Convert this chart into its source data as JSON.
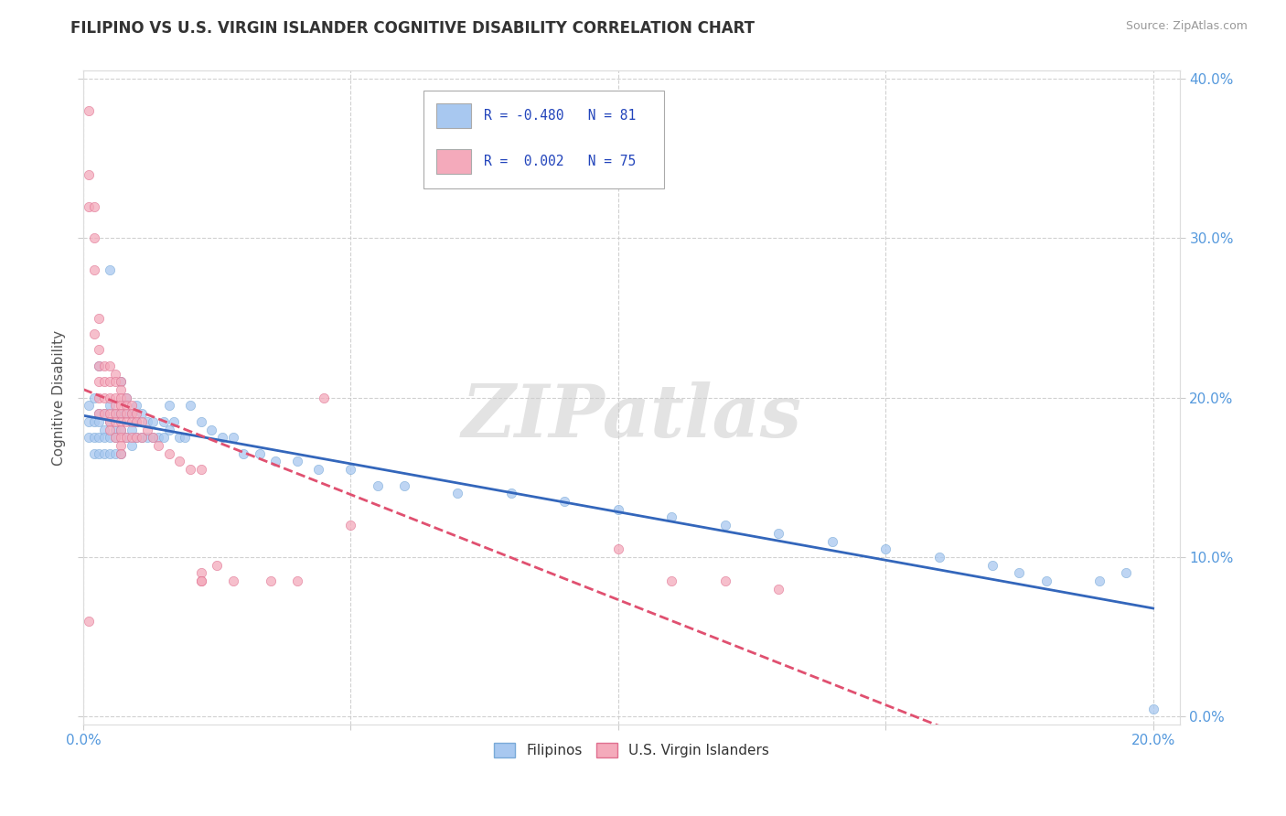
{
  "title": "FILIPINO VS U.S. VIRGIN ISLANDER COGNITIVE DISABILITY CORRELATION CHART",
  "source": "Source: ZipAtlas.com",
  "ylabel": "Cognitive Disability",
  "watermark": "ZIPatlas",
  "series": [
    {
      "name": "Filipinos",
      "color": "#A8C8F0",
      "edge_color": "#7AAAD8",
      "R": -0.48,
      "N": 81,
      "trend_color": "#3366BB",
      "trend_dash": "solid",
      "x": [
        0.001,
        0.001,
        0.001,
        0.002,
        0.002,
        0.002,
        0.002,
        0.003,
        0.003,
        0.003,
        0.003,
        0.003,
        0.004,
        0.004,
        0.004,
        0.004,
        0.005,
        0.005,
        0.005,
        0.005,
        0.005,
        0.006,
        0.006,
        0.006,
        0.006,
        0.007,
        0.007,
        0.007,
        0.007,
        0.008,
        0.008,
        0.008,
        0.009,
        0.009,
        0.009,
        0.01,
        0.01,
        0.01,
        0.011,
        0.011,
        0.012,
        0.012,
        0.013,
        0.013,
        0.014,
        0.015,
        0.015,
        0.016,
        0.016,
        0.017,
        0.018,
        0.019,
        0.02,
        0.022,
        0.024,
        0.026,
        0.028,
        0.03,
        0.033,
        0.036,
        0.04,
        0.044,
        0.05,
        0.055,
        0.06,
        0.07,
        0.08,
        0.09,
        0.1,
        0.11,
        0.12,
        0.13,
        0.14,
        0.15,
        0.16,
        0.17,
        0.175,
        0.18,
        0.19,
        0.195,
        0.2
      ],
      "y": [
        0.195,
        0.185,
        0.175,
        0.2,
        0.185,
        0.175,
        0.165,
        0.19,
        0.185,
        0.175,
        0.165,
        0.22,
        0.19,
        0.18,
        0.175,
        0.165,
        0.195,
        0.185,
        0.175,
        0.165,
        0.28,
        0.19,
        0.18,
        0.175,
        0.165,
        0.21,
        0.19,
        0.18,
        0.165,
        0.2,
        0.19,
        0.175,
        0.19,
        0.18,
        0.17,
        0.195,
        0.185,
        0.175,
        0.19,
        0.175,
        0.185,
        0.175,
        0.185,
        0.175,
        0.175,
        0.185,
        0.175,
        0.195,
        0.18,
        0.185,
        0.175,
        0.175,
        0.195,
        0.185,
        0.18,
        0.175,
        0.175,
        0.165,
        0.165,
        0.16,
        0.16,
        0.155,
        0.155,
        0.145,
        0.145,
        0.14,
        0.14,
        0.135,
        0.13,
        0.125,
        0.12,
        0.115,
        0.11,
        0.105,
        0.1,
        0.095,
        0.09,
        0.085,
        0.085,
        0.09,
        0.005
      ]
    },
    {
      "name": "U.S. Virgin Islanders",
      "color": "#F4AABB",
      "edge_color": "#E07090",
      "R": 0.002,
      "N": 75,
      "trend_color": "#E05070",
      "trend_dash": "dashed",
      "x": [
        0.001,
        0.001,
        0.001,
        0.001,
        0.002,
        0.002,
        0.002,
        0.002,
        0.003,
        0.003,
        0.003,
        0.003,
        0.003,
        0.003,
        0.004,
        0.004,
        0.004,
        0.004,
        0.005,
        0.005,
        0.005,
        0.005,
        0.005,
        0.005,
        0.006,
        0.006,
        0.006,
        0.006,
        0.006,
        0.006,
        0.006,
        0.007,
        0.007,
        0.007,
        0.007,
        0.007,
        0.007,
        0.007,
        0.007,
        0.007,
        0.007,
        0.008,
        0.008,
        0.008,
        0.008,
        0.008,
        0.009,
        0.009,
        0.009,
        0.009,
        0.01,
        0.01,
        0.01,
        0.011,
        0.011,
        0.012,
        0.013,
        0.014,
        0.016,
        0.018,
        0.02,
        0.022,
        0.025,
        0.028,
        0.035,
        0.04,
        0.045,
        0.05,
        0.1,
        0.11,
        0.12,
        0.13,
        0.022,
        0.022,
        0.022
      ],
      "y": [
        0.38,
        0.34,
        0.32,
        0.06,
        0.32,
        0.3,
        0.28,
        0.24,
        0.25,
        0.23,
        0.22,
        0.21,
        0.2,
        0.19,
        0.22,
        0.21,
        0.2,
        0.19,
        0.22,
        0.21,
        0.2,
        0.19,
        0.185,
        0.18,
        0.215,
        0.21,
        0.2,
        0.195,
        0.19,
        0.185,
        0.175,
        0.21,
        0.205,
        0.2,
        0.195,
        0.19,
        0.185,
        0.18,
        0.175,
        0.17,
        0.165,
        0.2,
        0.195,
        0.19,
        0.185,
        0.175,
        0.195,
        0.19,
        0.185,
        0.175,
        0.19,
        0.185,
        0.175,
        0.185,
        0.175,
        0.18,
        0.175,
        0.17,
        0.165,
        0.16,
        0.155,
        0.155,
        0.095,
        0.085,
        0.085,
        0.085,
        0.2,
        0.12,
        0.105,
        0.085,
        0.085,
        0.08,
        0.09,
        0.085,
        0.085
      ]
    }
  ],
  "xlim": [
    0.0,
    0.205
  ],
  "ylim": [
    -0.005,
    0.405
  ],
  "xtick_major": [
    0.0,
    0.2
  ],
  "xtick_minor": [
    0.05,
    0.1,
    0.15
  ],
  "ytick_major": [
    0.0,
    0.1,
    0.2,
    0.3,
    0.4
  ],
  "grid_color": "#CCCCCC",
  "background_color": "#FFFFFF",
  "title_fontsize": 12,
  "label_color": "#5599DD",
  "source_color": "#999999",
  "legend_R_color": "#2244BB",
  "legend_N_color": "#2244BB"
}
